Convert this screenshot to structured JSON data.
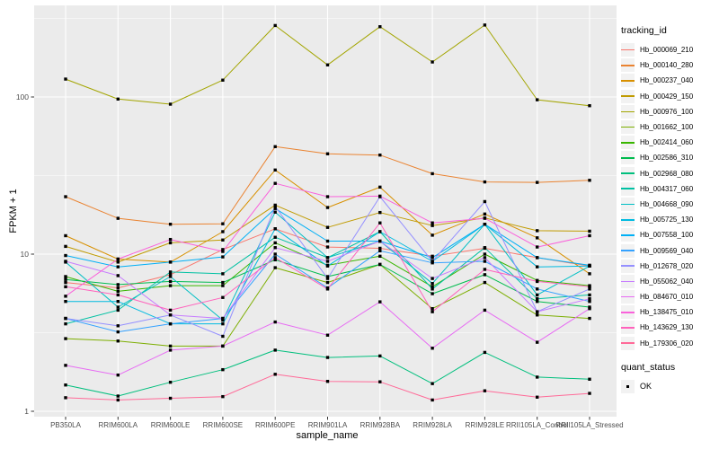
{
  "chart_data": {
    "type": "line",
    "title": "",
    "xlabel": "sample_name",
    "ylabel": "FPKM + 1",
    "y_scale": "log10",
    "ylim": [
      1,
      383
    ],
    "y_ticks": [
      1,
      10,
      100
    ],
    "y_minor_ticks": [
      3.162,
      31.62,
      316.2
    ],
    "grid": true,
    "legend_position": "right",
    "legend_title": "tracking_id",
    "panel_bg": "#EBEBEB",
    "grid_color": "#FFFFFF",
    "tick_label_color": "#4D4D4D",
    "tick_mark_color": "#333333",
    "point_color": "#000000",
    "point_shape": "square",
    "categories": [
      "PB350LA",
      "RRIM600LA",
      "RRIM600LE",
      "RRIM600SE",
      "RRIM600PE",
      "RRIM901LA",
      "RRIM928BA",
      "RRIM928LA",
      "RRIM928LE",
      "RRII105LA_Control",
      "RRII105LA_Stressed"
    ],
    "shape_legend": {
      "title": "quant_status",
      "items": [
        {
          "label": "OK",
          "shape": "square",
          "color": "#000000"
        }
      ]
    },
    "series": [
      {
        "name": "Hb_000069_210",
        "color": "#F8766D",
        "values": [
          6.6,
          6.1,
          7.4,
          10.7,
          14.5,
          11.1,
          10.9,
          9.7,
          10.9,
          9.5,
          8.4
        ]
      },
      {
        "name": "Hb_000140_280",
        "color": "#EA8331",
        "values": [
          23.2,
          16.9,
          15.5,
          15.6,
          48.3,
          43.5,
          42.7,
          32.5,
          28.8,
          28.6,
          29.5
        ]
      },
      {
        "name": "Hb_000237_040",
        "color": "#D89000",
        "values": [
          13.1,
          9.3,
          8.9,
          13.9,
          34.3,
          19.8,
          26.7,
          13.2,
          18.0,
          12.7,
          7.5
        ]
      },
      {
        "name": "Hb_000429_150",
        "color": "#C09B00",
        "values": [
          11.2,
          8.9,
          11.8,
          12.3,
          20.5,
          14.8,
          18.4,
          15.2,
          17.0,
          14.1,
          14.0
        ]
      },
      {
        "name": "Hb_000976_100",
        "color": "#A3A500",
        "values": [
          130,
          97,
          90,
          128,
          285,
          160,
          280,
          167,
          287,
          96,
          88
        ]
      },
      {
        "name": "Hb_001662_100",
        "color": "#7CAE00",
        "values": [
          2.9,
          2.8,
          2.6,
          2.6,
          8.2,
          6.6,
          8.6,
          4.5,
          6.6,
          4.1,
          3.9
        ]
      },
      {
        "name": "Hb_002414_060",
        "color": "#39B600",
        "values": [
          7.2,
          5.8,
          6.3,
          6.3,
          11.8,
          8.5,
          9.7,
          6.2,
          10.0,
          6.8,
          6.3
        ]
      },
      {
        "name": "Hb_002586_310",
        "color": "#00BB4E",
        "values": [
          6.9,
          6.4,
          6.7,
          6.6,
          9.2,
          7.2,
          8.6,
          5.6,
          7.4,
          5.0,
          4.6
        ]
      },
      {
        "name": "Hb_002968_080",
        "color": "#00BF7D",
        "values": [
          1.47,
          1.25,
          1.53,
          1.84,
          2.45,
          2.2,
          2.25,
          1.5,
          2.37,
          1.65,
          1.6
        ]
      },
      {
        "name": "Hb_004317_060",
        "color": "#00C1A3",
        "values": [
          3.6,
          4.4,
          7.7,
          7.5,
          12.8,
          9.5,
          13.9,
          6.0,
          11.0,
          5.2,
          5.5
        ]
      },
      {
        "name": "Hb_004668_090",
        "color": "#00BFC4",
        "values": [
          8.9,
          4.6,
          7.2,
          3.8,
          18.5,
          9.5,
          12.1,
          6.5,
          15.5,
          5.5,
          8.4
        ]
      },
      {
        "name": "Hb_005725_130",
        "color": "#00BAE0",
        "values": [
          5.0,
          5.0,
          3.6,
          3.6,
          14.5,
          8.4,
          13.9,
          9.0,
          15.5,
          8.3,
          8.4
        ]
      },
      {
        "name": "Hb_007558_100",
        "color": "#00B0F6",
        "values": [
          9.8,
          8.3,
          8.9,
          9.6,
          19.5,
          12.1,
          12.1,
          9.5,
          15.5,
          9.5,
          8.5
        ]
      },
      {
        "name": "Hb_009569_040",
        "color": "#35A2FF",
        "values": [
          3.9,
          3.2,
          3.6,
          3.9,
          10.0,
          6.1,
          10.5,
          8.8,
          9.0,
          6.0,
          5.0
        ]
      },
      {
        "name": "Hb_012678_020",
        "color": "#9590FF",
        "values": [
          3.9,
          3.5,
          4.1,
          3.0,
          20.1,
          7.0,
          23.2,
          9.0,
          21.6,
          4.3,
          6.0
        ]
      },
      {
        "name": "Hb_055062_040",
        "color": "#C77CFF",
        "values": [
          9.0,
          7.3,
          4.1,
          3.9,
          11.0,
          9.0,
          12.1,
          7.0,
          9.5,
          4.3,
          5.2
        ]
      },
      {
        "name": "Hb_084670_010",
        "color": "#E76BF3",
        "values": [
          1.96,
          1.7,
          2.45,
          2.6,
          3.7,
          3.05,
          4.97,
          2.52,
          4.4,
          2.75,
          4.5
        ]
      },
      {
        "name": "Hb_138475_010",
        "color": "#FA62DB",
        "values": [
          5.4,
          9.3,
          12.4,
          10.4,
          28.2,
          23.2,
          23.4,
          15.8,
          16.9,
          11.1,
          13.1
        ]
      },
      {
        "name": "Hb_143629_130",
        "color": "#FF62BC",
        "values": [
          6.2,
          5.5,
          4.4,
          5.3,
          9.5,
          6.0,
          15.8,
          4.3,
          8.0,
          6.7,
          6.2
        ]
      },
      {
        "name": "Hb_179306_020",
        "color": "#FF6A98",
        "values": [
          1.22,
          1.18,
          1.21,
          1.24,
          1.72,
          1.55,
          1.54,
          1.18,
          1.35,
          1.23,
          1.3
        ]
      }
    ]
  }
}
